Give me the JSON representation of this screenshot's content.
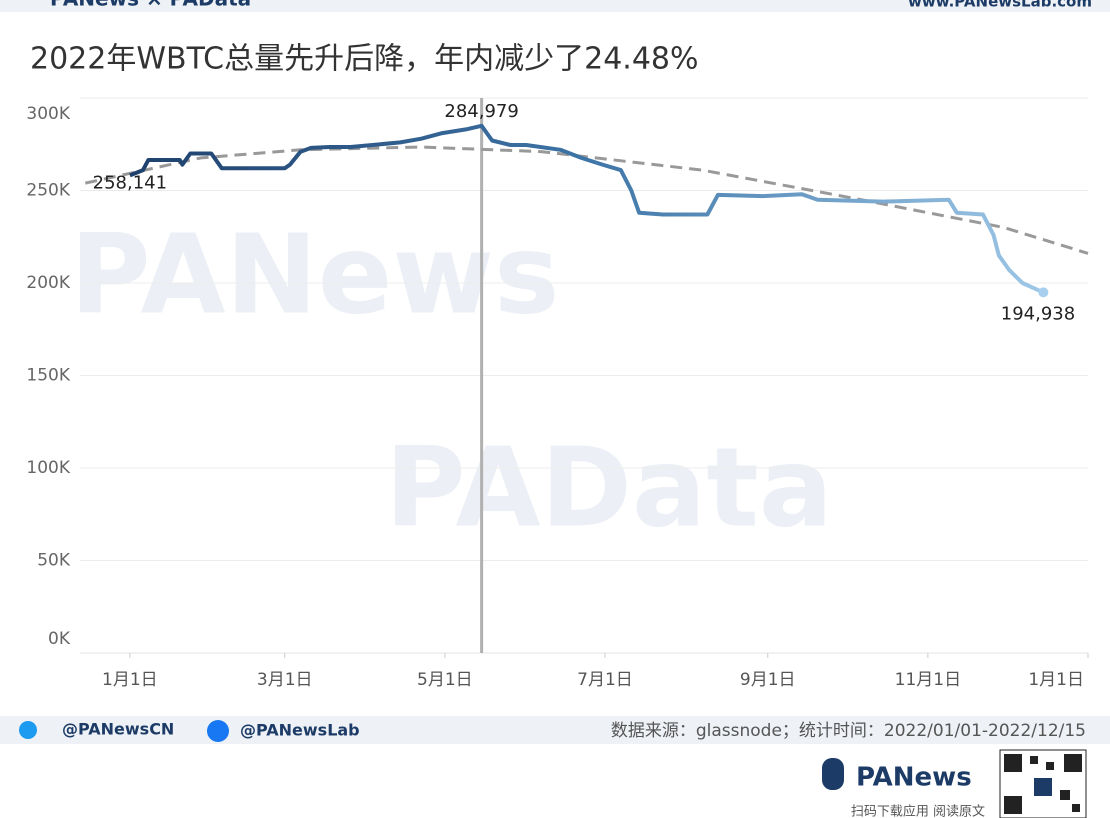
{
  "header": {
    "logo": "PANews × PAData",
    "website": "www.PANewsLab.com"
  },
  "watermarks": [
    "PANews",
    "PAData"
  ],
  "chart_data": {
    "type": "line",
    "title": "2022年WBTC总量先升后降，年内减少了24.48%",
    "x": [
      "2022-01-01",
      "2022-01-06",
      "2022-01-08",
      "2022-01-20",
      "2022-01-21",
      "2022-01-24",
      "2022-02-01",
      "2022-02-05",
      "2022-03-01",
      "2022-03-03",
      "2022-03-07",
      "2022-03-11",
      "2022-03-18",
      "2022-03-26",
      "2022-04-14",
      "2022-04-22",
      "2022-04-30",
      "2022-05-09",
      "2022-05-15",
      "2022-05-19",
      "2022-05-26",
      "2022-06-01",
      "2022-06-14",
      "2022-06-22",
      "2022-06-30",
      "2022-07-07",
      "2022-07-11",
      "2022-07-14",
      "2022-07-23",
      "2022-08-09",
      "2022-08-13",
      "2022-08-30",
      "2022-09-14",
      "2022-09-20",
      "2022-10-15",
      "2022-11-09",
      "2022-11-12",
      "2022-11-22",
      "2022-11-26",
      "2022-11-28",
      "2022-12-02",
      "2022-12-07",
      "2022-12-15"
    ],
    "values": [
      258141,
      261000,
      266500,
      266500,
      264000,
      270000,
      270000,
      262000,
      262000,
      264000,
      271000,
      273000,
      273500,
      273500,
      276000,
      278000,
      281000,
      283000,
      284979,
      277000,
      274600,
      274600,
      272000,
      267600,
      264000,
      261000,
      250000,
      238000,
      237000,
      237000,
      247600,
      247000,
      248000,
      245000,
      244000,
      245000,
      238000,
      237000,
      226000,
      215000,
      207000,
      200000,
      194938
    ],
    "value_labels": [
      "258,141",
      null,
      null,
      null,
      null,
      null,
      null,
      null,
      null,
      null,
      null,
      null,
      null,
      null,
      null,
      null,
      null,
      null,
      "284,979",
      null,
      null,
      null,
      null,
      null,
      null,
      null,
      null,
      null,
      null,
      null,
      null,
      null,
      null,
      null,
      null,
      null,
      null,
      null,
      null,
      null,
      null,
      null,
      "194,938"
    ],
    "line_colors": [
      "#1c3b66",
      "#3d74a6",
      "#a8d0ee"
    ],
    "trend": {
      "x": [
        "2021-12-15",
        "2022-01-28",
        "2022-03-07",
        "2022-04-22",
        "2022-06-07",
        "2022-08-07",
        "2022-10-03",
        "2022-11-30",
        "2023-01-01"
      ],
      "values": [
        254000,
        267600,
        272000,
        273500,
        271000,
        261000,
        246000,
        230000,
        216000
      ],
      "color": "#999999",
      "dash": true
    },
    "reference_x": "2022-05-15",
    "reference_color": "#b0b0b0",
    "xlim": [
      "2021-12-13",
      "2023-01-01"
    ],
    "xticks": [
      {
        "value": "2022-01-01",
        "label": "1月1日"
      },
      {
        "value": "2022-03-01",
        "label": "3月1日"
      },
      {
        "value": "2022-05-01",
        "label": "5月1日"
      },
      {
        "value": "2022-07-01",
        "label": "7月1日"
      },
      {
        "value": "2022-09-01",
        "label": "9月1日"
      },
      {
        "value": "2022-11-01",
        "label": "11月1日"
      },
      {
        "value": "2023-01-01",
        "label": "1月1日"
      }
    ],
    "ylim": [
      0,
      300000
    ],
    "yticks": [
      {
        "value": 0,
        "label": "0K"
      },
      {
        "value": 50000,
        "label": "50K"
      },
      {
        "value": 100000,
        "label": "100K"
      },
      {
        "value": 150000,
        "label": "150K"
      },
      {
        "value": 200000,
        "label": "200K"
      },
      {
        "value": 250000,
        "label": "250K"
      },
      {
        "value": 300000,
        "label": "300K"
      }
    ],
    "grid": true
  },
  "footer": {
    "twitter": "@PANewsCN",
    "facebook": "@PANewsLab",
    "source": "数据来源：glassnode；统计时间：2022/01/01-2022/12/15",
    "brand": "PANews",
    "qr_caption": "扫码下载应用 阅读原文"
  }
}
